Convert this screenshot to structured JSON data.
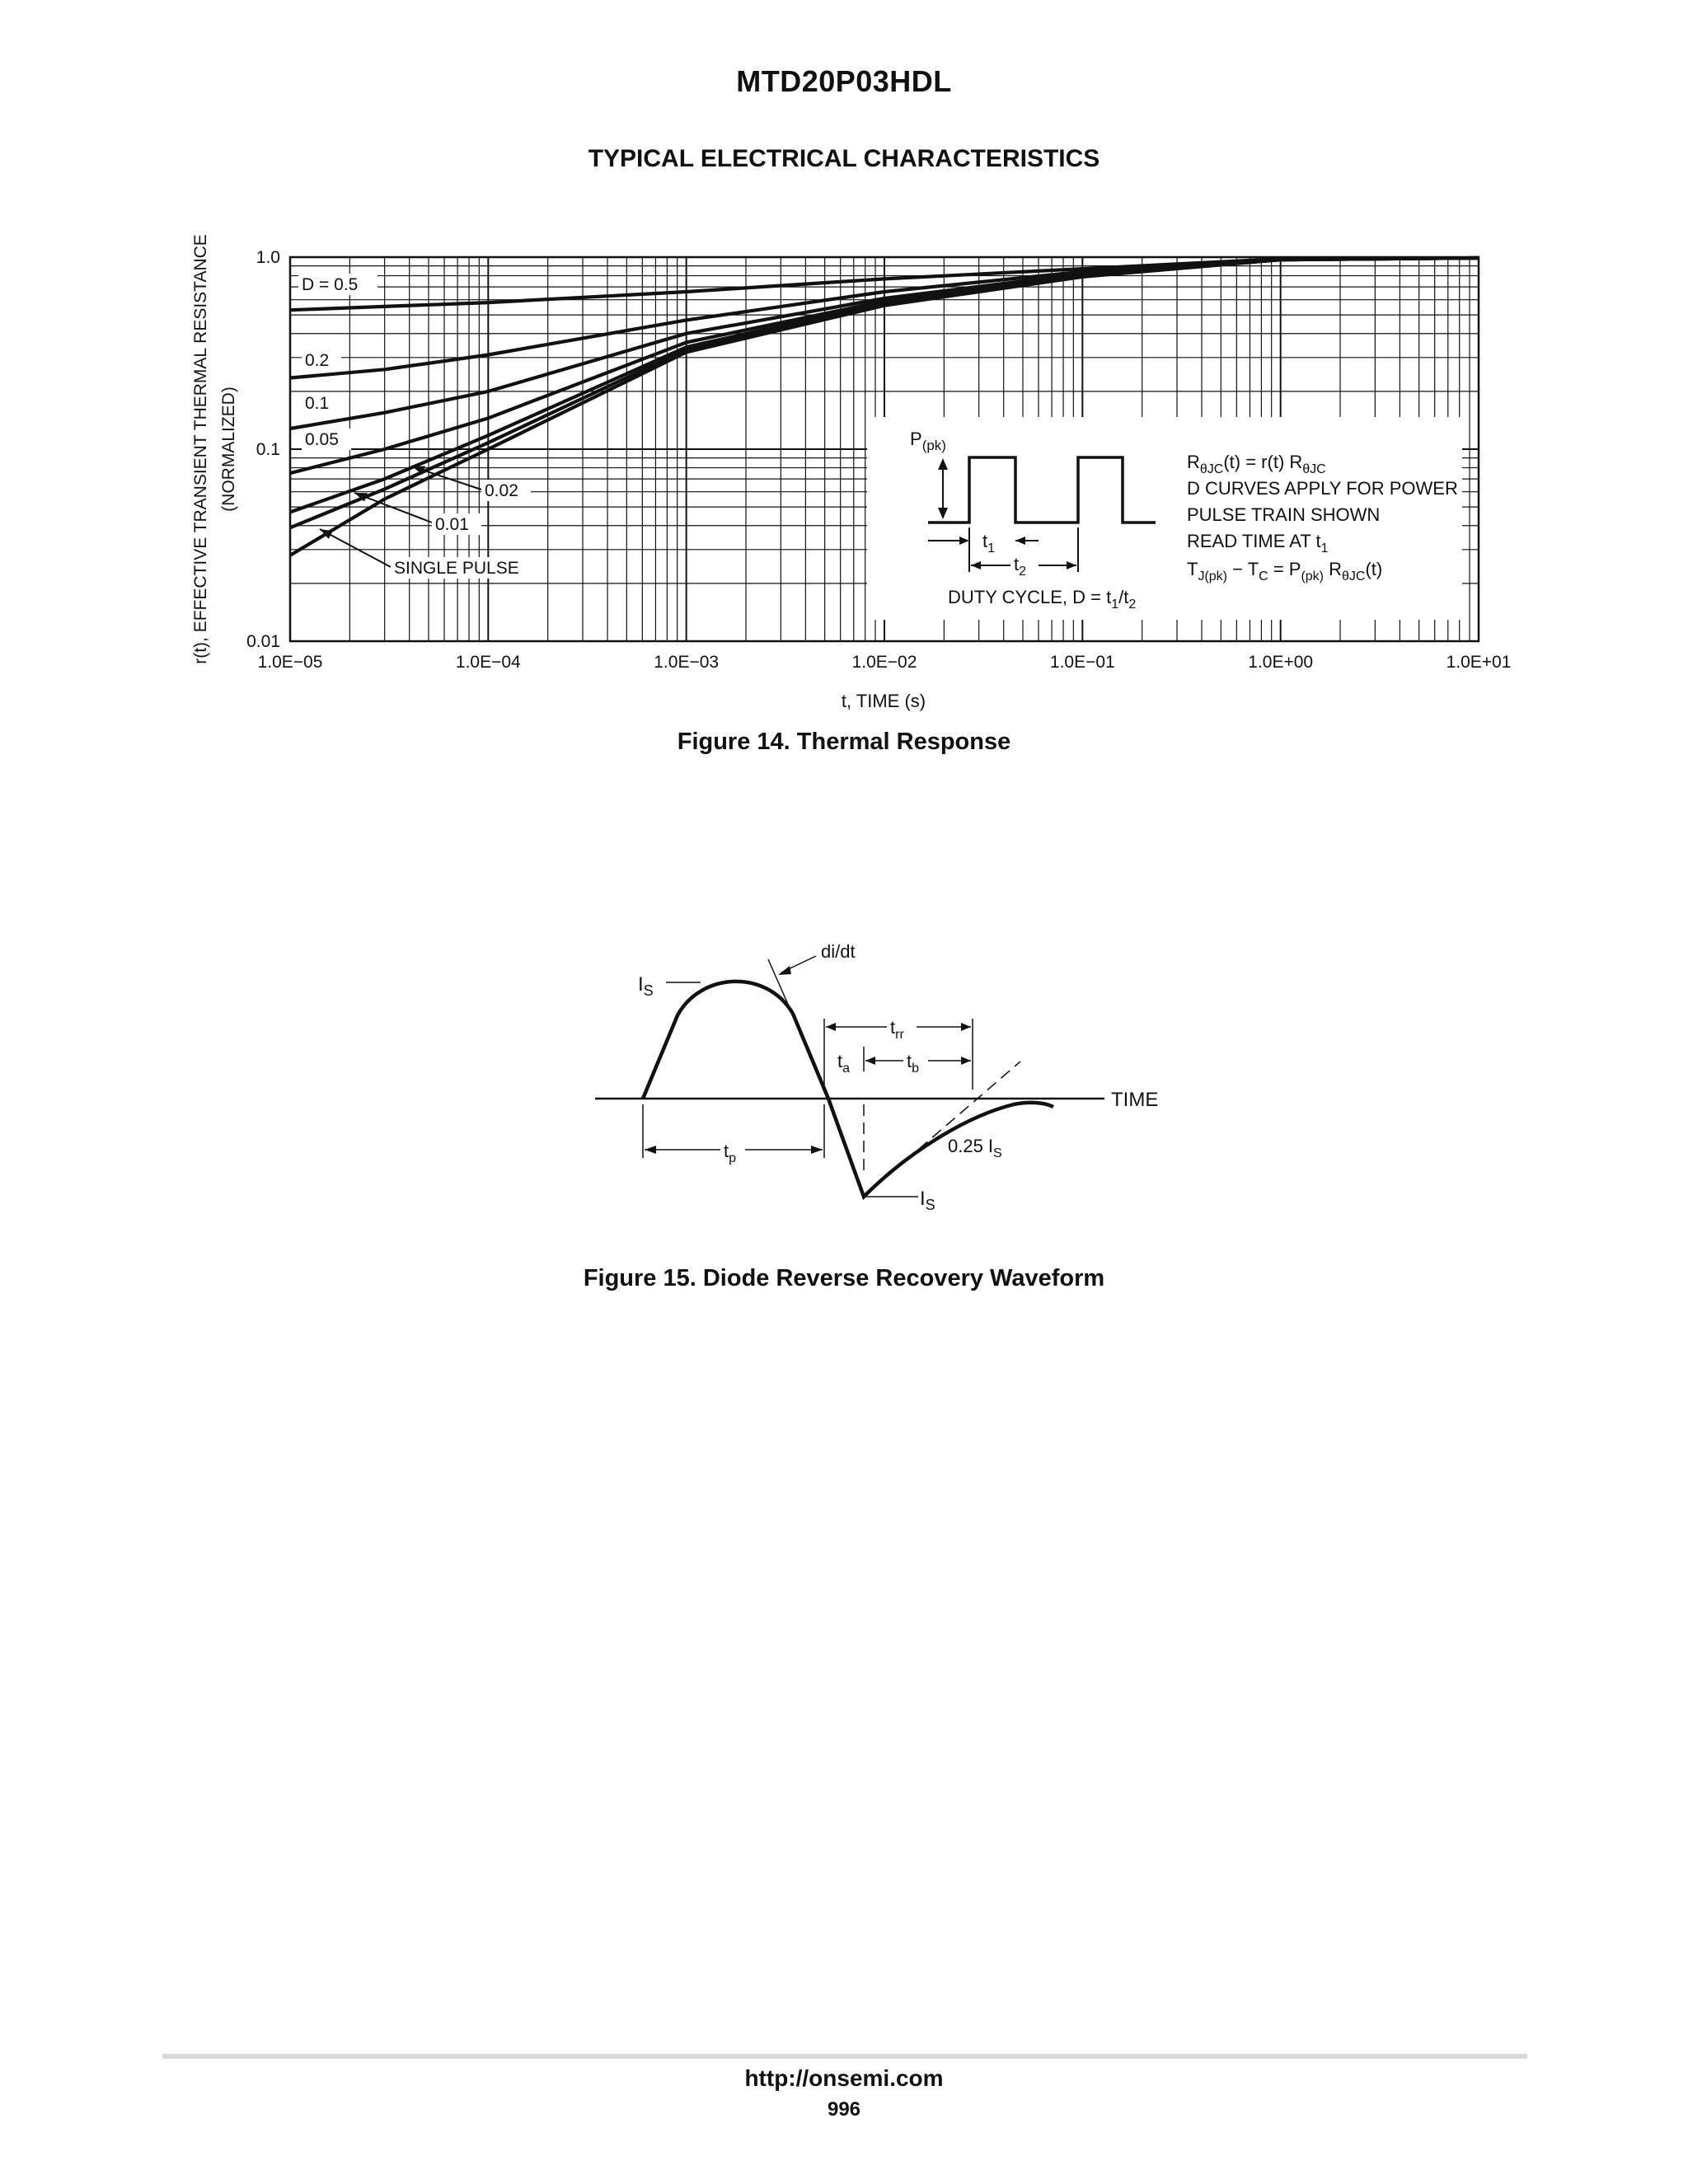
{
  "header": {
    "part_number": "MTD20P03HDL",
    "section_title": "TYPICAL ELECTRICAL CHARACTERISTICS"
  },
  "figure14": {
    "caption": "Figure 14. Thermal Response",
    "inset": {
      "ppk_label": "P(pk)",
      "t1_label": "t1",
      "t2_label": "t2",
      "duty_cycle_label": "DUTY CYCLE, D = t1/t2",
      "notes": [
        "RθJC(t) = r(t) RθJC",
        "D CURVES APPLY FOR POWER",
        "PULSE TRAIN SHOWN",
        "READ TIME AT t1",
        "TJ(pk) − TC = P(pk) RθJC(t)"
      ]
    }
  },
  "figure15": {
    "caption": "Figure 15. Diode Reverse Recovery Waveform",
    "labels": {
      "is_top": "IS",
      "didt": "di/dt",
      "trr": "trr",
      "ta": "ta",
      "tb": "tb",
      "time": "TIME",
      "tp": "tp",
      "quarter_is": "0.25 IS",
      "is_bottom": "IS"
    }
  },
  "footer": {
    "url": "http://onsemi.com",
    "page": "996"
  },
  "chart_data": {
    "type": "line",
    "title": "Figure 14. Thermal Response",
    "xlabel": "t, TIME (s)",
    "ylabel": "r(t), EFFECTIVE TRANSIENT THERMAL RESISTANCE (NORMALIZED)",
    "x_scale": "log",
    "y_scale": "log",
    "xlim": [
      1e-05,
      10
    ],
    "ylim": [
      0.01,
      1.0
    ],
    "grid": true,
    "x_ticks": [
      "1.0E−05",
      "1.0E−04",
      "1.0E−03",
      "1.0E−02",
      "1.0E−01",
      "1.0E+00",
      "1.0E+01"
    ],
    "y_ticks": [
      "0.01",
      "0.1",
      "1.0"
    ],
    "series": [
      {
        "name": "D = 0.5",
        "x": [
          1e-05,
          0.0001,
          0.001,
          0.01,
          0.1,
          1,
          10
        ],
        "values": [
          0.53,
          0.58,
          0.66,
          0.77,
          0.87,
          0.98,
          0.99
        ]
      },
      {
        "name": "0.2",
        "x": [
          1e-05,
          3e-05,
          0.0001,
          0.001,
          0.01,
          0.1,
          1,
          10
        ],
        "values": [
          0.235,
          0.26,
          0.31,
          0.47,
          0.66,
          0.84,
          0.98,
          0.99
        ]
      },
      {
        "name": "0.1",
        "x": [
          1e-05,
          3e-05,
          0.0001,
          0.001,
          0.01,
          0.1,
          1,
          10
        ],
        "values": [
          0.128,
          0.155,
          0.2,
          0.4,
          0.61,
          0.82,
          0.98,
          0.99
        ]
      },
      {
        "name": "0.05",
        "x": [
          1e-05,
          3e-05,
          0.0001,
          0.001,
          0.01,
          0.1,
          1,
          10
        ],
        "values": [
          0.075,
          0.1,
          0.145,
          0.36,
          0.59,
          0.81,
          0.97,
          0.99
        ]
      },
      {
        "name": "0.02",
        "x": [
          1e-05,
          3e-05,
          0.0001,
          0.001,
          0.01,
          0.1,
          1,
          10
        ],
        "values": [
          0.047,
          0.07,
          0.118,
          0.34,
          0.58,
          0.8,
          0.97,
          0.99
        ]
      },
      {
        "name": "0.01",
        "x": [
          1e-05,
          3e-05,
          0.0001,
          0.001,
          0.01,
          0.1,
          1,
          10
        ],
        "values": [
          0.039,
          0.062,
          0.108,
          0.33,
          0.57,
          0.8,
          0.97,
          0.99
        ]
      },
      {
        "name": "SINGLE PULSE",
        "x": [
          1e-05,
          3e-05,
          0.0001,
          0.001,
          0.01,
          0.1,
          1,
          10
        ],
        "values": [
          0.028,
          0.055,
          0.1,
          0.32,
          0.56,
          0.79,
          0.97,
          0.99
        ]
      }
    ]
  },
  "colors": {
    "ink": "#111111",
    "footer_rule": "#d9d9d9"
  }
}
